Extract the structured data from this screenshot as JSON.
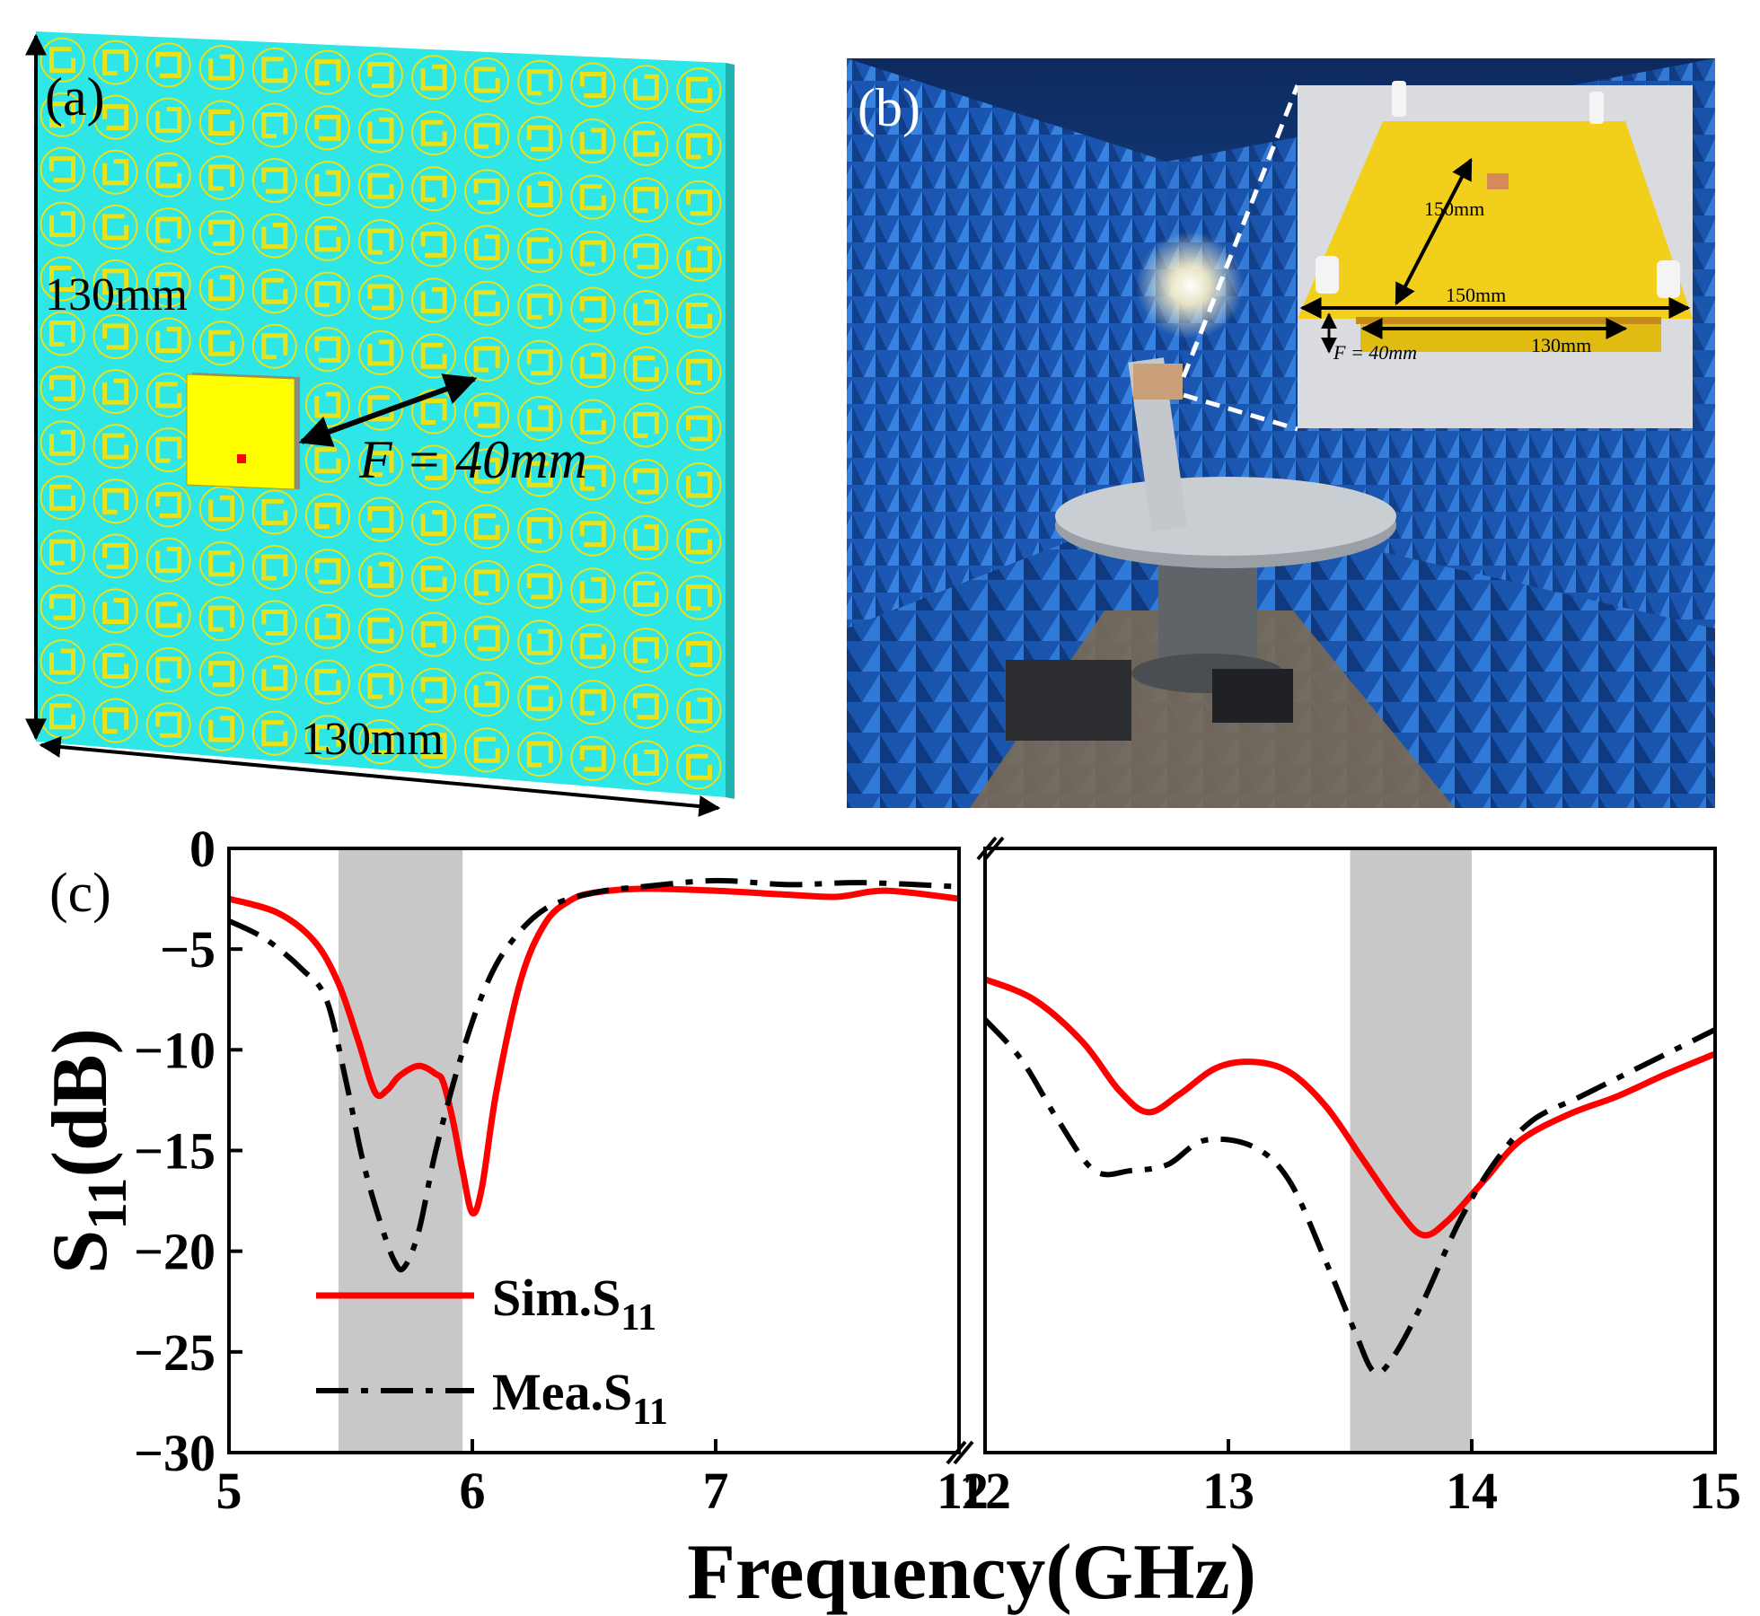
{
  "panel_a": {
    "label": "(a)",
    "dim_vertical": "130mm",
    "dim_horizontal": "130mm",
    "focal_label": "F = 40mm",
    "colors": {
      "substrate": "#2ee6e6",
      "unit_cell": "#e8e21a",
      "feed_patch": "#ffff00",
      "feed_port": "#ff0000"
    }
  },
  "panel_b": {
    "label": "(b)",
    "inset": {
      "dim_height": "150mm",
      "dim_width": "150mm",
      "dim_inner": "130mm",
      "focal_label": "F = 40mm"
    },
    "colors": {
      "absorber": "#1f64c8",
      "board": "#f2cf1a"
    }
  },
  "panel_c": {
    "label": "(c)",
    "chart_data": {
      "type": "line",
      "title": "",
      "xlabel": "Frequency(GHz)",
      "ylabel_main": "S",
      "ylabel_sub": "11",
      "ylabel_unit": "(dB)",
      "ylim": [
        -30,
        0
      ],
      "yticks": [
        0,
        -5,
        -10,
        -15,
        -20,
        -25,
        -30
      ],
      "ytick_labels": [
        "0",
        "−5",
        "−10",
        "−15",
        "−20",
        "−25",
        "−30"
      ],
      "broken_axis": true,
      "segments": [
        {
          "xlim": [
            5,
            8
          ],
          "xticks": [
            5,
            6,
            7
          ],
          "xtick_labels": [
            "5",
            "6",
            "7"
          ],
          "break_label": "12",
          "shaded_band": [
            5.45,
            5.96
          ]
        },
        {
          "xlim": [
            12,
            15
          ],
          "xticks": [
            12,
            13,
            14,
            15
          ],
          "xtick_labels": [
            "12",
            "13",
            "14",
            "15"
          ],
          "shaded_band": [
            13.5,
            14.0
          ]
        }
      ],
      "legend": {
        "position": "bottom-left",
        "entries": [
          {
            "name": "Sim.S",
            "sub": "11",
            "style": "solid",
            "color": "#ff0000"
          },
          {
            "name": "Mea.S",
            "sub": "11",
            "style": "dashdot",
            "color": "#000000"
          }
        ]
      },
      "series": [
        {
          "name": "Sim.S11",
          "color": "#ff0000",
          "style": "solid",
          "segment1": [
            [
              5.0,
              -2.5
            ],
            [
              5.2,
              -3.2
            ],
            [
              5.35,
              -4.6
            ],
            [
              5.45,
              -6.7
            ],
            [
              5.53,
              -9.5
            ],
            [
              5.6,
              -12.1
            ],
            [
              5.65,
              -12.0
            ],
            [
              5.7,
              -11.3
            ],
            [
              5.78,
              -10.8
            ],
            [
              5.85,
              -11.2
            ],
            [
              5.88,
              -11.6
            ],
            [
              5.92,
              -13.5
            ],
            [
              5.96,
              -16.0
            ],
            [
              6.0,
              -18.1
            ],
            [
              6.04,
              -16.8
            ],
            [
              6.1,
              -12.0
            ],
            [
              6.2,
              -6.5
            ],
            [
              6.3,
              -3.7
            ],
            [
              6.4,
              -2.6
            ],
            [
              6.5,
              -2.2
            ],
            [
              6.7,
              -2.0
            ],
            [
              7.0,
              -2.1
            ],
            [
              7.3,
              -2.3
            ],
            [
              7.5,
              -2.4
            ],
            [
              7.7,
              -2.1
            ],
            [
              8.0,
              -2.5
            ]
          ],
          "segment2": [
            [
              12.0,
              -6.5
            ],
            [
              12.2,
              -7.5
            ],
            [
              12.4,
              -9.6
            ],
            [
              12.55,
              -12.0
            ],
            [
              12.67,
              -13.1
            ],
            [
              12.8,
              -12.2
            ],
            [
              12.95,
              -10.9
            ],
            [
              13.1,
              -10.6
            ],
            [
              13.25,
              -11.1
            ],
            [
              13.4,
              -12.8
            ],
            [
              13.55,
              -15.4
            ],
            [
              13.7,
              -18.0
            ],
            [
              13.8,
              -19.2
            ],
            [
              13.9,
              -18.5
            ],
            [
              14.05,
              -16.5
            ],
            [
              14.2,
              -14.5
            ],
            [
              14.4,
              -13.2
            ],
            [
              14.6,
              -12.3
            ],
            [
              14.8,
              -11.2
            ],
            [
              15.0,
              -10.2
            ]
          ]
        },
        {
          "name": "Mea.S11",
          "color": "#000000",
          "style": "dashdot",
          "segment1": [
            [
              5.0,
              -3.6
            ],
            [
              5.15,
              -4.5
            ],
            [
              5.3,
              -6.0
            ],
            [
              5.4,
              -7.5
            ],
            [
              5.48,
              -11.5
            ],
            [
              5.55,
              -15.5
            ],
            [
              5.62,
              -18.5
            ],
            [
              5.68,
              -20.5
            ],
            [
              5.72,
              -20.8
            ],
            [
              5.78,
              -19.0
            ],
            [
              5.85,
              -15.0
            ],
            [
              5.95,
              -10.5
            ],
            [
              6.05,
              -7.0
            ],
            [
              6.15,
              -4.8
            ],
            [
              6.3,
              -3.0
            ],
            [
              6.5,
              -2.2
            ],
            [
              6.7,
              -1.9
            ],
            [
              7.0,
              -1.6
            ],
            [
              7.3,
              -1.8
            ],
            [
              7.6,
              -1.7
            ],
            [
              8.0,
              -1.9
            ]
          ],
          "segment2": [
            [
              12.0,
              -8.5
            ],
            [
              12.15,
              -10.5
            ],
            [
              12.3,
              -13.5
            ],
            [
              12.45,
              -16.0
            ],
            [
              12.6,
              -16.0
            ],
            [
              12.75,
              -15.7
            ],
            [
              12.9,
              -14.5
            ],
            [
              13.1,
              -14.8
            ],
            [
              13.25,
              -16.5
            ],
            [
              13.4,
              -20.5
            ],
            [
              13.52,
              -24.0
            ],
            [
              13.6,
              -26.0
            ],
            [
              13.68,
              -25.2
            ],
            [
              13.8,
              -22.5
            ],
            [
              13.95,
              -18.5
            ],
            [
              14.1,
              -15.5
            ],
            [
              14.25,
              -13.5
            ],
            [
              14.45,
              -12.3
            ],
            [
              14.7,
              -10.8
            ],
            [
              15.0,
              -9.0
            ]
          ]
        }
      ]
    }
  }
}
